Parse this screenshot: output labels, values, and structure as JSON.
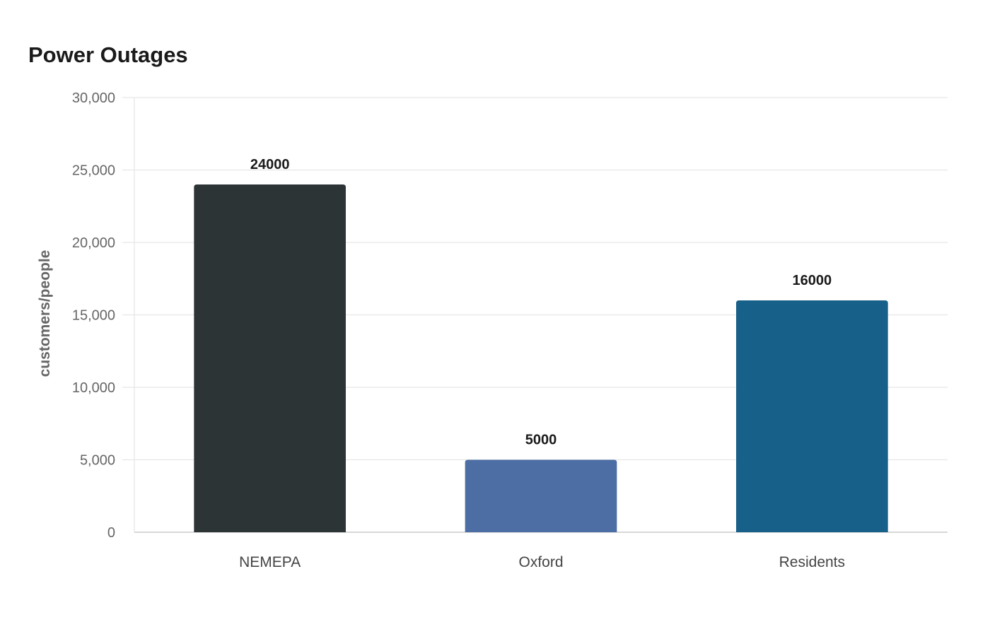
{
  "chart_data": {
    "type": "bar",
    "title": "Power Outages",
    "xlabel": "",
    "ylabel": "customers/people",
    "categories": [
      "NEMEPA",
      "Oxford",
      "Residents"
    ],
    "values": [
      24000,
      5000,
      16000
    ],
    "data_labels": [
      "24000",
      "5000",
      "16000"
    ],
    "colors": [
      "#2d3436",
      "#4c6ea4",
      "#176089"
    ],
    "ylim": [
      0,
      30000
    ],
    "yticks": [
      0,
      5000,
      10000,
      15000,
      20000,
      25000,
      30000
    ],
    "ytick_labels": [
      "0",
      "5,000",
      "10,000",
      "15,000",
      "20,000",
      "25,000",
      "30,000"
    ],
    "grid": true,
    "legend": "none"
  }
}
